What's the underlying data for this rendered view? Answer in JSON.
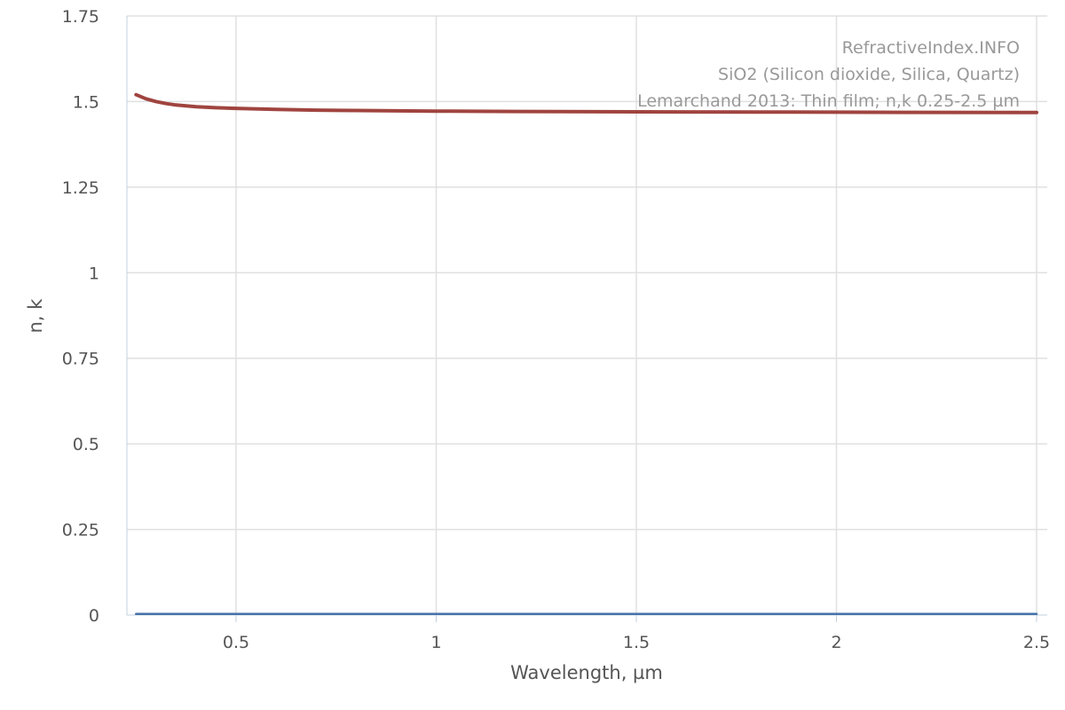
{
  "chart_data": {
    "type": "line",
    "annotations": [
      "RefractiveIndex.INFO",
      "SiO2 (Silicon dioxide, Silica, Quartz)",
      "Lemarchand 2013: Thin film; n,k 0.25-2.5 µm"
    ],
    "xlabel": "Wavelength, µm",
    "ylabel": "n, k",
    "xlim": [
      0.25,
      2.51
    ],
    "ylim": [
      0,
      1.75
    ],
    "x_ticks": [
      0.5,
      1,
      1.5,
      2,
      2.5
    ],
    "x_tick_labels": [
      "0.5",
      "1",
      "1.5",
      "2",
      "2.5"
    ],
    "y_ticks": [
      0,
      0.25,
      0.5,
      0.75,
      1,
      1.25,
      1.5,
      1.75
    ],
    "y_tick_labels": [
      "0",
      "0.25",
      "0.5",
      "0.75",
      "1",
      "1.25",
      "1.5",
      "1.75"
    ],
    "grid": true,
    "legend": "none",
    "series": [
      {
        "key": "n",
        "color": "#a0443f",
        "x": [
          0.25,
          0.275,
          0.3,
          0.325,
          0.35,
          0.4,
          0.45,
          0.5,
          0.6,
          0.7,
          0.8,
          1.0,
          1.2,
          1.5,
          1.8,
          2.0,
          2.2,
          2.5
        ],
        "y": [
          1.52,
          1.508,
          1.5,
          1.494,
          1.49,
          1.485,
          1.482,
          1.48,
          1.477,
          1.475,
          1.474,
          1.472,
          1.471,
          1.47,
          1.4695,
          1.469,
          1.4685,
          1.468
        ]
      },
      {
        "key": "k",
        "color": "#4572a7",
        "x": [
          0.25,
          0.5,
          1.0,
          1.5,
          2.0,
          2.5
        ],
        "y": [
          0.003,
          0.003,
          0.003,
          0.003,
          0.003,
          0.003
        ]
      }
    ]
  }
}
